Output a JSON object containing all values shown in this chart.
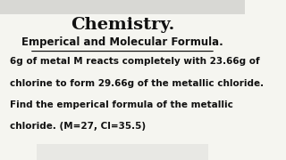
{
  "bg_color": "#f5f5f0",
  "title": "Chemistry.",
  "subtitle": "Emperical and Molecular Formula.",
  "body_lines": [
    "6g of metal M reacts completely with 23.66g of",
    "chlorine to form 29.66g of the metallic chloride.",
    "Find the emperical formula of the metallic",
    "chloride. (M=27, Cl=35.5)"
  ],
  "title_fontsize": 14,
  "subtitle_fontsize": 8.5,
  "body_fontsize": 7.5,
  "title_color": "#111111",
  "subtitle_color": "#111111",
  "body_color": "#111111",
  "toolbar_color": "#e8e8e4",
  "top_toolbar_color": "#d8d8d4"
}
